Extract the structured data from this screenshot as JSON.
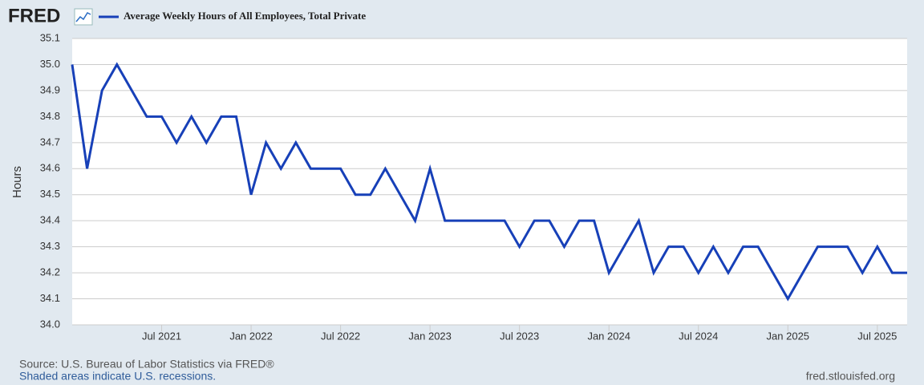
{
  "chart_data": {
    "type": "line",
    "logo": "FRED",
    "ylabel": "Hours",
    "source": "Source: U.S. Bureau of Labor Statistics via FRED®",
    "note": "Shaded areas indicate U.S. recessions.",
    "url": "fred.stlouisfed.org",
    "x": [
      "2021-01",
      "2021-02",
      "2021-03",
      "2021-04",
      "2021-05",
      "2021-06",
      "2021-07",
      "2021-08",
      "2021-09",
      "2021-10",
      "2021-11",
      "2021-12",
      "2022-01",
      "2022-02",
      "2022-03",
      "2022-04",
      "2022-05",
      "2022-06",
      "2022-07",
      "2022-08",
      "2022-09",
      "2022-10",
      "2022-11",
      "2022-12",
      "2023-01",
      "2023-02",
      "2023-03",
      "2023-04",
      "2023-05",
      "2023-06",
      "2023-07",
      "2023-08",
      "2023-09",
      "2023-10",
      "2023-11",
      "2023-12",
      "2024-01",
      "2024-02",
      "2024-03",
      "2024-04",
      "2024-05",
      "2024-06",
      "2024-07",
      "2024-08",
      "2024-09",
      "2024-10",
      "2024-11",
      "2024-12",
      "2025-01",
      "2025-02",
      "2025-03",
      "2025-04",
      "2025-05",
      "2025-06",
      "2025-07",
      "2025-08",
      "2025-09"
    ],
    "series": [
      {
        "name": "Average Weekly Hours of All Employees, Total Private",
        "color": "#1740b8",
        "values": [
          35.0,
          34.6,
          34.9,
          35.0,
          34.9,
          34.8,
          34.8,
          34.7,
          34.8,
          34.7,
          34.8,
          34.8,
          34.5,
          34.7,
          34.6,
          34.7,
          34.6,
          34.6,
          34.6,
          34.5,
          34.5,
          34.6,
          34.5,
          34.4,
          34.6,
          34.4,
          34.4,
          34.4,
          34.4,
          34.4,
          34.3,
          34.4,
          34.4,
          34.3,
          34.4,
          34.4,
          34.2,
          34.3,
          34.4,
          34.2,
          34.3,
          34.3,
          34.2,
          34.3,
          34.2,
          34.3,
          34.3,
          34.2,
          34.1,
          34.2,
          34.3,
          34.3,
          34.3,
          34.2,
          34.3,
          34.2,
          34.2
        ]
      }
    ],
    "ylim": [
      34.0,
      35.1
    ],
    "yticks": [
      {
        "value": 34.0,
        "label": "34.0"
      },
      34.1,
      34.2,
      34.3,
      34.4,
      34.5,
      34.6,
      34.7,
      34.8,
      34.9,
      {
        "value": 35.0,
        "label": "35.0"
      },
      35.1
    ],
    "xticks": [
      {
        "value": "2021-07",
        "label": "Jul 2021"
      },
      {
        "value": "2022-01",
        "label": "Jan 2022"
      },
      {
        "value": "2022-07",
        "label": "Jul 2022"
      },
      {
        "value": "2023-01",
        "label": "Jan 2023"
      },
      {
        "value": "2023-07",
        "label": "Jul 2023"
      },
      {
        "value": "2024-01",
        "label": "Jan 2024"
      },
      {
        "value": "2024-07",
        "label": "Jul 2024"
      },
      {
        "value": "2025-01",
        "label": "Jan 2025"
      },
      {
        "value": "2025-07",
        "label": "Jul 2025"
      }
    ],
    "grid": true
  }
}
